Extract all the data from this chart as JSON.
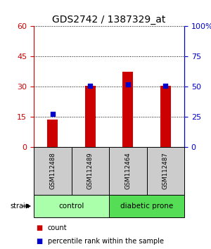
{
  "title": "GDS2742 / 1387329_at",
  "samples": [
    "GSM112488",
    "GSM112489",
    "GSM112464",
    "GSM112487"
  ],
  "counts": [
    13.5,
    30.2,
    37.5,
    30.2
  ],
  "percentiles": [
    27.5,
    50.5,
    52.0,
    50.5
  ],
  "left_ylim": [
    0,
    60
  ],
  "left_yticks": [
    0,
    15,
    30,
    45,
    60
  ],
  "right_ylim": [
    0,
    100
  ],
  "right_yticks": [
    0,
    25,
    50,
    75,
    100
  ],
  "right_yticklabels": [
    "0",
    "25",
    "50",
    "75",
    "100%"
  ],
  "bar_color": "#cc0000",
  "dot_color": "#0000cc",
  "groups": [
    {
      "label": "control",
      "indices": [
        0,
        1
      ],
      "color": "#aaffaa"
    },
    {
      "label": "diabetic prone",
      "indices": [
        2,
        3
      ],
      "color": "#55dd55"
    }
  ],
  "strain_label": "strain",
  "legend_count_label": "count",
  "legend_pct_label": "percentile rank within the sample",
  "bg_color": "#ffffff",
  "plot_bg_color": "#ffffff",
  "sample_box_color": "#cccccc",
  "grid_color": "#000000",
  "left_tick_color": "#cc0000",
  "right_tick_color": "#0000cc",
  "title_fontsize": 10,
  "tick_fontsize": 8,
  "label_fontsize": 7.5
}
